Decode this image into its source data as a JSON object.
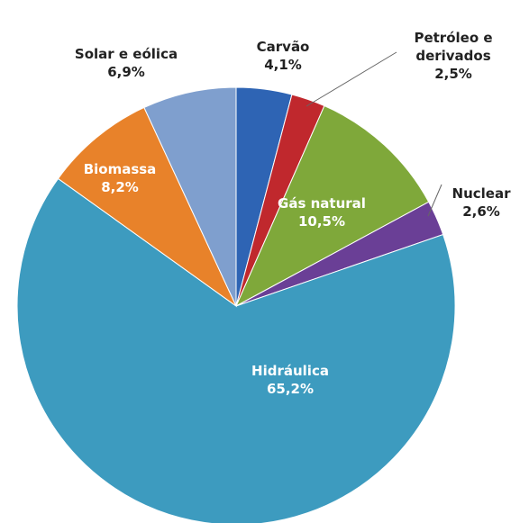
{
  "chart_data": {
    "type": "pie",
    "categories": [
      "Carvão",
      "Petróleo e derivados",
      "Gás natural",
      "Nuclear",
      "Hidráulica",
      "Biomassa",
      "Solar e eólica"
    ],
    "values": [
      4.1,
      2.5,
      10.5,
      2.6,
      65.2,
      8.2,
      6.9
    ],
    "value_labels": [
      "4,1%",
      "2,5%",
      "10,5%",
      "2,6%",
      "65,2%",
      "8,2%",
      "6,9%"
    ],
    "colors": [
      "#2e64b4",
      "#c0282d",
      "#7fa83a",
      "#6a3f96",
      "#3d9bbf",
      "#e8822a",
      "#7f9fce"
    ]
  }
}
